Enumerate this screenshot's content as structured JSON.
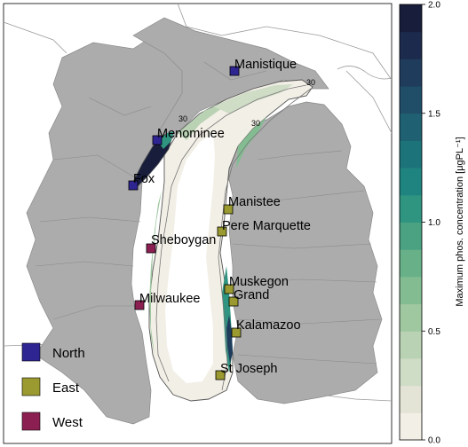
{
  "colors": {
    "land": "#acacac",
    "land_edge": "#8a8a8a",
    "lake_base": "#ffffff",
    "north": "#2e2592",
    "east": "#9a9a30",
    "west": "#8c1f52",
    "colormap": [
      "#f2efe6",
      "#e3e3d6",
      "#cfdcc6",
      "#b9d2b3",
      "#9fc7a0",
      "#84bc92",
      "#67b088",
      "#4aa282",
      "#2f9480",
      "#1f847f",
      "#1d737a",
      "#1f6172",
      "#204e69",
      "#1f3c5d",
      "#1c2b4d",
      "#171d3b"
    ]
  },
  "rivers": [
    {
      "name": "Manistique",
      "group": "North"
    },
    {
      "name": "Menominee",
      "group": "North"
    },
    {
      "name": "Fox",
      "group": "North"
    },
    {
      "name": "Manistee",
      "group": "East"
    },
    {
      "name": "Pere Marquette",
      "group": "East"
    },
    {
      "name": "Sheboygan",
      "group": "West"
    },
    {
      "name": "Milwaukee",
      "group": "West"
    },
    {
      "name": "Muskegon",
      "group": "East"
    },
    {
      "name": "Grand",
      "group": "East"
    },
    {
      "name": "Kalamazoo",
      "group": "East"
    },
    {
      "name": "St Joseph",
      "group": "East"
    }
  ],
  "legend": [
    {
      "label": "North",
      "group": "North"
    },
    {
      "label": "East",
      "group": "East"
    },
    {
      "label": "West",
      "group": "West"
    }
  ],
  "colorbar": {
    "label": "Maximum phos. concentration [$\\mu gPL^{-1}$]",
    "label_display": "Maximum phos. concentration [μgPL⁻¹]",
    "min": 0.0,
    "max": 2.0,
    "ticks": [
      "0.0",
      "0.5",
      "1.0",
      "1.5",
      "2.0"
    ]
  },
  "contour_labels": [
    "30",
    "30",
    "30"
  ]
}
